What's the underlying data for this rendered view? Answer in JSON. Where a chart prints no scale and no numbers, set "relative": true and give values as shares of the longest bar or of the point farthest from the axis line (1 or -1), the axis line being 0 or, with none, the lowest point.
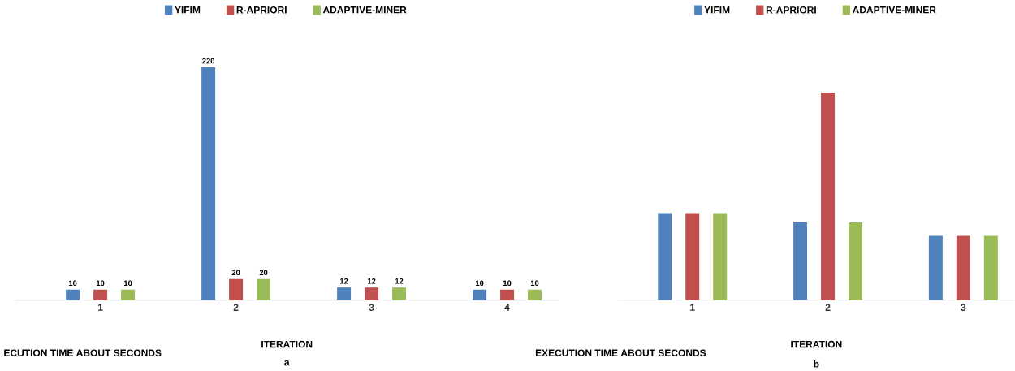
{
  "chart_data": [
    {
      "type": "bar",
      "categories": [
        "1",
        "2",
        "3",
        "4"
      ],
      "xlabel": "ITERATION",
      "ylabel": "ECUTION TIME ABOUT SECONDS",
      "annotations": [
        "a"
      ],
      "data_labels": true,
      "legend": "top",
      "series": [
        {
          "name": "YIFIM",
          "color": "#4f81bd",
          "values": [
            10,
            220,
            12,
            10
          ]
        },
        {
          "name": "R-APRIORI",
          "color": "#c0504d",
          "values": [
            10,
            20,
            12,
            10
          ]
        },
        {
          "name": "ADAPTIVE-MINER",
          "color": "#9bbb59",
          "values": [
            10,
            20,
            12,
            10
          ]
        }
      ]
    },
    {
      "type": "bar",
      "categories": [
        "1",
        "2",
        "3"
      ],
      "xlabel": "ITERATION",
      "ylabel": "EXECUTION TIME ABOUT SECONDS",
      "annotations": [
        "b"
      ],
      "relative": true,
      "legend": "top",
      "series": [
        {
          "name": "YIFIM",
          "color": "#4f81bd",
          "values": [
            0.42,
            0.375,
            0.31
          ]
        },
        {
          "name": "R-APRIORI",
          "color": "#c0504d",
          "values": [
            0.42,
            1,
            0.31
          ]
        },
        {
          "name": "ADAPTIVE-MINER",
          "color": "#9bbb59",
          "values": [
            0.42,
            0.375,
            0.31
          ]
        }
      ]
    }
  ]
}
